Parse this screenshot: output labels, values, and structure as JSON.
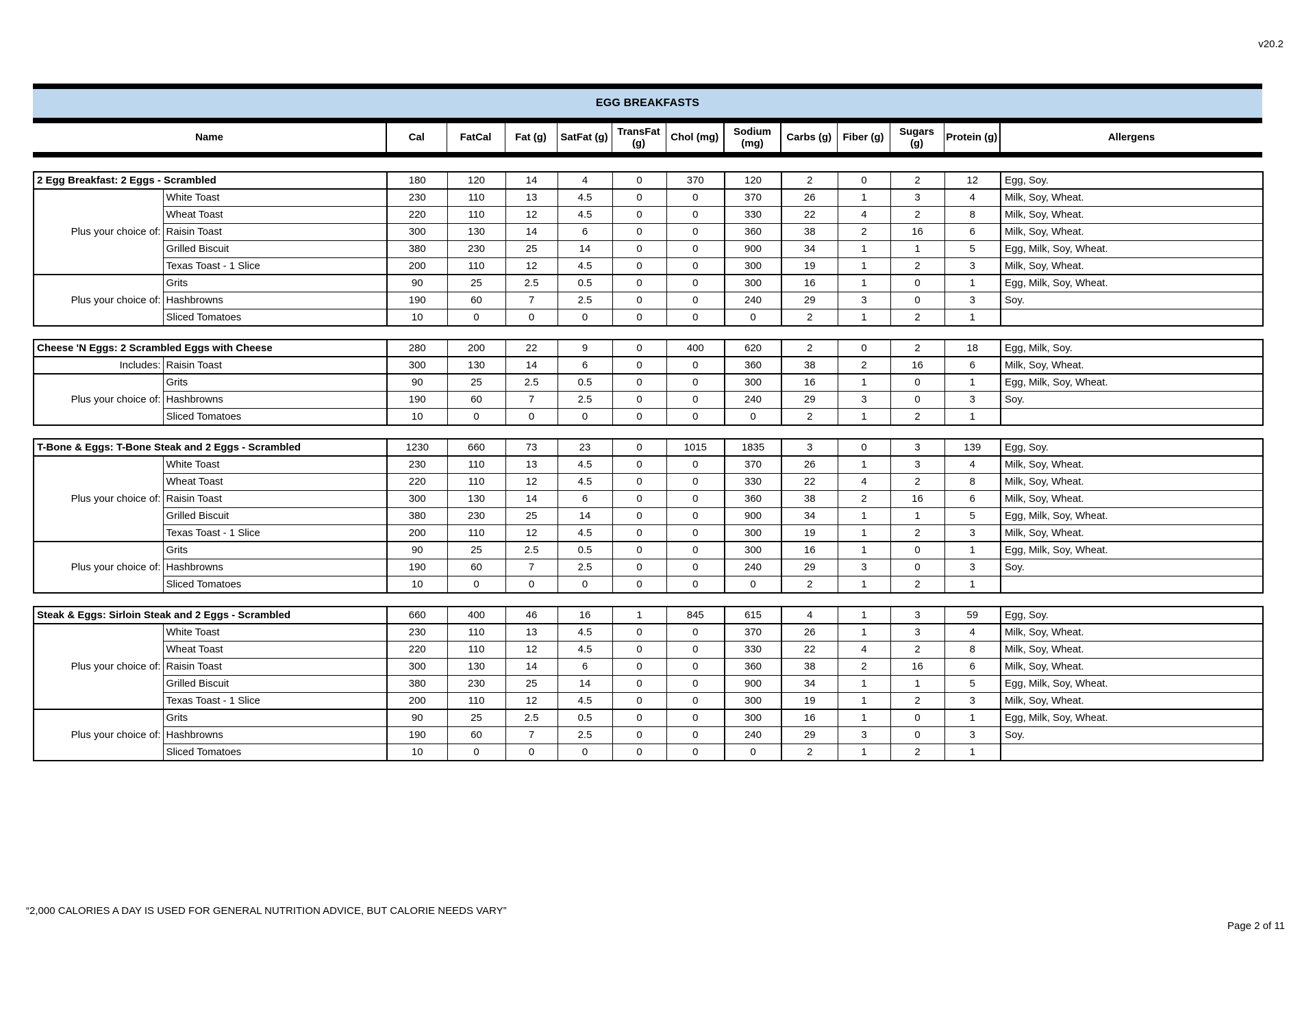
{
  "page": {
    "version": "v20.2",
    "footnote": "“2,000 CALORIES A DAY IS USED FOR GENERAL NUTRITION ADVICE, BUT CALORIE NEEDS VARY”",
    "page_indicator": "Page 2 of 11"
  },
  "table": {
    "title": "EGG BREAKFASTS",
    "title_bg": "#BDD7EE",
    "columns": [
      "Name",
      "Cal",
      "FatCal",
      "Fat (g)",
      "SatFat (g)",
      "TransFat (g)",
      "Chol (mg)",
      "Sodium (mg)",
      "Carbs (g)",
      "Fiber (g)",
      "Sugars (g)",
      "Protein (g)",
      "Allergens"
    ],
    "sections": [
      {
        "title": "2 Egg Breakfast: 2 Eggs - Scrambled",
        "values": [
          "180",
          "120",
          "14",
          "4",
          "0",
          "370",
          "120",
          "2",
          "0",
          "2",
          "12"
        ],
        "allergens": "Egg, Soy.",
        "groups": [
          {
            "label": "Plus your choice of:",
            "items": [
              {
                "name": "White Toast",
                "values": [
                  "230",
                  "110",
                  "13",
                  "4.5",
                  "0",
                  "0",
                  "370",
                  "26",
                  "1",
                  "3",
                  "4"
                ],
                "allergens": "Milk, Soy, Wheat."
              },
              {
                "name": "Wheat Toast",
                "values": [
                  "220",
                  "110",
                  "12",
                  "4.5",
                  "0",
                  "0",
                  "330",
                  "22",
                  "4",
                  "2",
                  "8"
                ],
                "allergens": "Milk, Soy, Wheat."
              },
              {
                "name": "Raisin Toast",
                "values": [
                  "300",
                  "130",
                  "14",
                  "6",
                  "0",
                  "0",
                  "360",
                  "38",
                  "2",
                  "16",
                  "6"
                ],
                "allergens": "Milk, Soy, Wheat."
              },
              {
                "name": "Grilled Biscuit",
                "values": [
                  "380",
                  "230",
                  "25",
                  "14",
                  "0",
                  "0",
                  "900",
                  "34",
                  "1",
                  "1",
                  "5"
                ],
                "allergens": "Egg, Milk, Soy, Wheat."
              },
              {
                "name": "Texas Toast - 1 Slice",
                "values": [
                  "200",
                  "110",
                  "12",
                  "4.5",
                  "0",
                  "0",
                  "300",
                  "19",
                  "1",
                  "2",
                  "3"
                ],
                "allergens": "Milk, Soy, Wheat."
              }
            ]
          },
          {
            "label": "Plus your choice of:",
            "items": [
              {
                "name": "Grits",
                "values": [
                  "90",
                  "25",
                  "2.5",
                  "0.5",
                  "0",
                  "0",
                  "300",
                  "16",
                  "1",
                  "0",
                  "1"
                ],
                "allergens": "Egg, Milk, Soy, Wheat."
              },
              {
                "name": "Hashbrowns",
                "values": [
                  "190",
                  "60",
                  "7",
                  "2.5",
                  "0",
                  "0",
                  "240",
                  "29",
                  "3",
                  "0",
                  "3"
                ],
                "allergens": "Soy."
              },
              {
                "name": "Sliced Tomatoes",
                "values": [
                  "10",
                  "0",
                  "0",
                  "0",
                  "0",
                  "0",
                  "0",
                  "2",
                  "1",
                  "2",
                  "1"
                ],
                "allergens": ""
              }
            ]
          }
        ]
      },
      {
        "title": "Cheese 'N Eggs: 2 Scrambled Eggs with Cheese",
        "values": [
          "280",
          "200",
          "22",
          "9",
          "0",
          "400",
          "620",
          "2",
          "0",
          "2",
          "18"
        ],
        "allergens": "Egg, Milk, Soy.",
        "groups": [
          {
            "label": "Includes:",
            "items": [
              {
                "name": "Raisin Toast",
                "values": [
                  "300",
                  "130",
                  "14",
                  "6",
                  "0",
                  "0",
                  "360",
                  "38",
                  "2",
                  "16",
                  "6"
                ],
                "allergens": "Milk, Soy, Wheat."
              }
            ]
          },
          {
            "label": "Plus your choice of:",
            "items": [
              {
                "name": "Grits",
                "values": [
                  "90",
                  "25",
                  "2.5",
                  "0.5",
                  "0",
                  "0",
                  "300",
                  "16",
                  "1",
                  "0",
                  "1"
                ],
                "allergens": "Egg, Milk, Soy, Wheat."
              },
              {
                "name": "Hashbrowns",
                "values": [
                  "190",
                  "60",
                  "7",
                  "2.5",
                  "0",
                  "0",
                  "240",
                  "29",
                  "3",
                  "0",
                  "3"
                ],
                "allergens": "Soy."
              },
              {
                "name": "Sliced Tomatoes",
                "values": [
                  "10",
                  "0",
                  "0",
                  "0",
                  "0",
                  "0",
                  "0",
                  "2",
                  "1",
                  "2",
                  "1"
                ],
                "allergens": ""
              }
            ]
          }
        ]
      },
      {
        "title": "T-Bone & Eggs: T-Bone Steak and 2 Eggs - Scrambled",
        "values": [
          "1230",
          "660",
          "73",
          "23",
          "0",
          "1015",
          "1835",
          "3",
          "0",
          "3",
          "139"
        ],
        "allergens": "Egg, Soy.",
        "groups": [
          {
            "label": "Plus your choice of:",
            "items": [
              {
                "name": "White Toast",
                "values": [
                  "230",
                  "110",
                  "13",
                  "4.5",
                  "0",
                  "0",
                  "370",
                  "26",
                  "1",
                  "3",
                  "4"
                ],
                "allergens": "Milk, Soy, Wheat."
              },
              {
                "name": "Wheat Toast",
                "values": [
                  "220",
                  "110",
                  "12",
                  "4.5",
                  "0",
                  "0",
                  "330",
                  "22",
                  "4",
                  "2",
                  "8"
                ],
                "allergens": "Milk, Soy, Wheat."
              },
              {
                "name": "Raisin Toast",
                "values": [
                  "300",
                  "130",
                  "14",
                  "6",
                  "0",
                  "0",
                  "360",
                  "38",
                  "2",
                  "16",
                  "6"
                ],
                "allergens": "Milk, Soy, Wheat."
              },
              {
                "name": "Grilled Biscuit",
                "values": [
                  "380",
                  "230",
                  "25",
                  "14",
                  "0",
                  "0",
                  "900",
                  "34",
                  "1",
                  "1",
                  "5"
                ],
                "allergens": "Egg, Milk, Soy, Wheat."
              },
              {
                "name": "Texas Toast - 1 Slice",
                "values": [
                  "200",
                  "110",
                  "12",
                  "4.5",
                  "0",
                  "0",
                  "300",
                  "19",
                  "1",
                  "2",
                  "3"
                ],
                "allergens": "Milk, Soy, Wheat."
              }
            ]
          },
          {
            "label": "Plus your choice of:",
            "items": [
              {
                "name": "Grits",
                "values": [
                  "90",
                  "25",
                  "2.5",
                  "0.5",
                  "0",
                  "0",
                  "300",
                  "16",
                  "1",
                  "0",
                  "1"
                ],
                "allergens": "Egg, Milk, Soy, Wheat."
              },
              {
                "name": "Hashbrowns",
                "values": [
                  "190",
                  "60",
                  "7",
                  "2.5",
                  "0",
                  "0",
                  "240",
                  "29",
                  "3",
                  "0",
                  "3"
                ],
                "allergens": "Soy."
              },
              {
                "name": "Sliced Tomatoes",
                "values": [
                  "10",
                  "0",
                  "0",
                  "0",
                  "0",
                  "0",
                  "0",
                  "2",
                  "1",
                  "2",
                  "1"
                ],
                "allergens": ""
              }
            ]
          }
        ]
      },
      {
        "title": "Steak & Eggs: Sirloin Steak and 2 Eggs - Scrambled",
        "values": [
          "660",
          "400",
          "46",
          "16",
          "1",
          "845",
          "615",
          "4",
          "1",
          "3",
          "59"
        ],
        "allergens": "Egg, Soy.",
        "groups": [
          {
            "label": "Plus your choice of:",
            "items": [
              {
                "name": "White Toast",
                "values": [
                  "230",
                  "110",
                  "13",
                  "4.5",
                  "0",
                  "0",
                  "370",
                  "26",
                  "1",
                  "3",
                  "4"
                ],
                "allergens": "Milk, Soy, Wheat."
              },
              {
                "name": "Wheat Toast",
                "values": [
                  "220",
                  "110",
                  "12",
                  "4.5",
                  "0",
                  "0",
                  "330",
                  "22",
                  "4",
                  "2",
                  "8"
                ],
                "allergens": "Milk, Soy, Wheat."
              },
              {
                "name": "Raisin Toast",
                "values": [
                  "300",
                  "130",
                  "14",
                  "6",
                  "0",
                  "0",
                  "360",
                  "38",
                  "2",
                  "16",
                  "6"
                ],
                "allergens": "Milk, Soy, Wheat."
              },
              {
                "name": "Grilled Biscuit",
                "values": [
                  "380",
                  "230",
                  "25",
                  "14",
                  "0",
                  "0",
                  "900",
                  "34",
                  "1",
                  "1",
                  "5"
                ],
                "allergens": "Egg, Milk, Soy, Wheat."
              },
              {
                "name": "Texas Toast - 1 Slice",
                "values": [
                  "200",
                  "110",
                  "12",
                  "4.5",
                  "0",
                  "0",
                  "300",
                  "19",
                  "1",
                  "2",
                  "3"
                ],
                "allergens": "Milk, Soy, Wheat."
              }
            ]
          },
          {
            "label": "Plus your choice of:",
            "items": [
              {
                "name": "Grits",
                "values": [
                  "90",
                  "25",
                  "2.5",
                  "0.5",
                  "0",
                  "0",
                  "300",
                  "16",
                  "1",
                  "0",
                  "1"
                ],
                "allergens": "Egg, Milk, Soy, Wheat."
              },
              {
                "name": "Hashbrowns",
                "values": [
                  "190",
                  "60",
                  "7",
                  "2.5",
                  "0",
                  "0",
                  "240",
                  "29",
                  "3",
                  "0",
                  "3"
                ],
                "allergens": "Soy."
              },
              {
                "name": "Sliced Tomatoes",
                "values": [
                  "10",
                  "0",
                  "0",
                  "0",
                  "0",
                  "0",
                  "0",
                  "2",
                  "1",
                  "2",
                  "1"
                ],
                "allergens": ""
              }
            ]
          }
        ]
      }
    ]
  }
}
